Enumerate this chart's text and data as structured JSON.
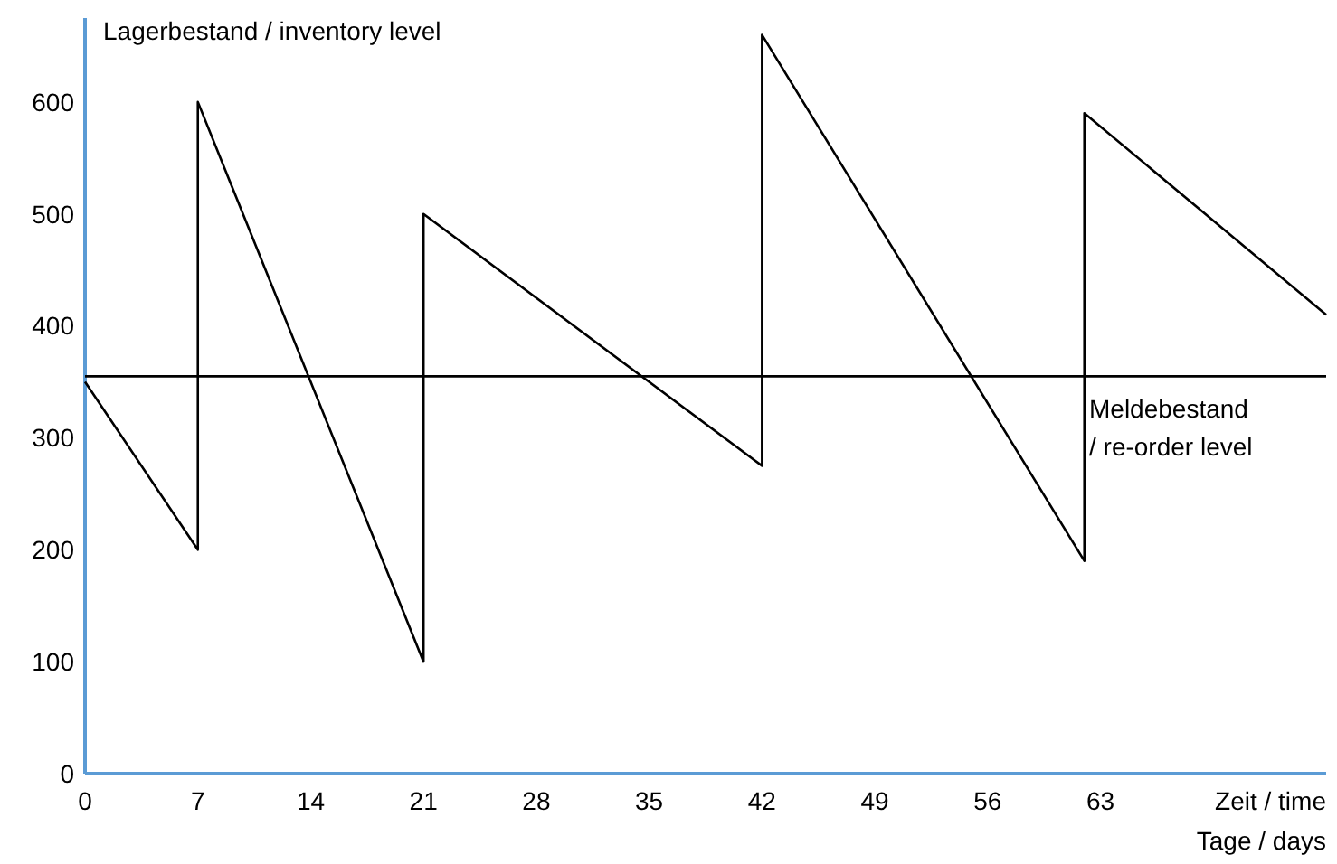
{
  "chart_data": {
    "type": "line",
    "xlabel": "Zeit / time\nTage / days",
    "ylabel": "Lagerbestand / inventory level",
    "series": [
      {
        "color": "#000000",
        "x": [
          0,
          7,
          7,
          21,
          21,
          42,
          42,
          62,
          62,
          77
        ],
        "values": [
          350,
          200,
          600,
          100,
          500,
          275,
          660,
          190,
          590,
          410
        ]
      }
    ],
    "xlim": [
      0,
      77
    ],
    "ylim": [
      0,
      675
    ],
    "xticks": [
      0,
      7,
      14,
      21,
      28,
      35,
      42,
      49,
      56,
      63
    ],
    "yticks": [
      0,
      100,
      200,
      300,
      400,
      500,
      600
    ],
    "ref_lines": [
      {
        "axis": "y",
        "value": 355,
        "label": "Meldebestand\n/ re-order level",
        "color": "#000000"
      }
    ],
    "grid": false,
    "line_style": "solid"
  }
}
